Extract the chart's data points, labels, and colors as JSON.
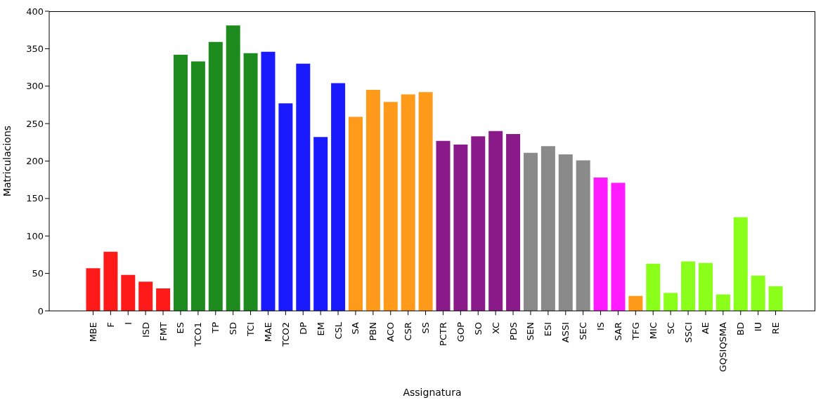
{
  "chart_data": {
    "type": "bar",
    "xlabel": "Assignatura",
    "ylabel": "Matriculacions",
    "categories": [
      "MBE",
      "F",
      "I",
      "ISD",
      "FMT",
      "ES",
      "TCO1",
      "TP",
      "SD",
      "TCI",
      "MAE",
      "TCO2",
      "DP",
      "EM",
      "CSL",
      "SA",
      "PBN",
      "ACO",
      "CSR",
      "SS",
      "PCTR",
      "GOP",
      "SO",
      "XC",
      "PDS",
      "SEN",
      "ESI",
      "ASSI",
      "SEC",
      "IS",
      "SAR",
      "TFG",
      "MIC",
      "SC",
      "SSCI",
      "AE",
      "GQSIQSMA",
      "BD",
      "IU",
      "RE"
    ],
    "values": [
      57,
      79,
      48,
      39,
      30,
      342,
      333,
      359,
      381,
      344,
      346,
      277,
      330,
      232,
      304,
      259,
      295,
      279,
      289,
      292,
      227,
      222,
      233,
      240,
      236,
      211,
      220,
      209,
      201,
      178,
      171,
      20,
      63,
      24,
      66,
      64,
      22,
      125,
      47,
      33
    ],
    "colors": [
      "#ff1a1a",
      "#ff1a1a",
      "#ff1a1a",
      "#ff1a1a",
      "#ff1a1a",
      "#1e8b1e",
      "#1e8b1e",
      "#1e8b1e",
      "#1e8b1e",
      "#1e8b1e",
      "#1a1aff",
      "#1a1aff",
      "#1a1aff",
      "#1a1aff",
      "#1a1aff",
      "#ff9a1a",
      "#ff9a1a",
      "#ff9a1a",
      "#ff9a1a",
      "#ff9a1a",
      "#8a1a8a",
      "#8a1a8a",
      "#8a1a8a",
      "#8a1a8a",
      "#8a1a8a",
      "#8a8a8a",
      "#8a8a8a",
      "#8a8a8a",
      "#8a8a8a",
      "#ff1aff",
      "#ff1aff",
      "#ff9a1a",
      "#8aff1a",
      "#8aff1a",
      "#8aff1a",
      "#8aff1a",
      "#8aff1a",
      "#8aff1a",
      "#8aff1a",
      "#8aff1a"
    ],
    "ylim": [
      0,
      400
    ],
    "yticks": [
      0,
      50,
      100,
      150,
      200,
      250,
      300,
      350,
      400
    ],
    "grid": false
  }
}
